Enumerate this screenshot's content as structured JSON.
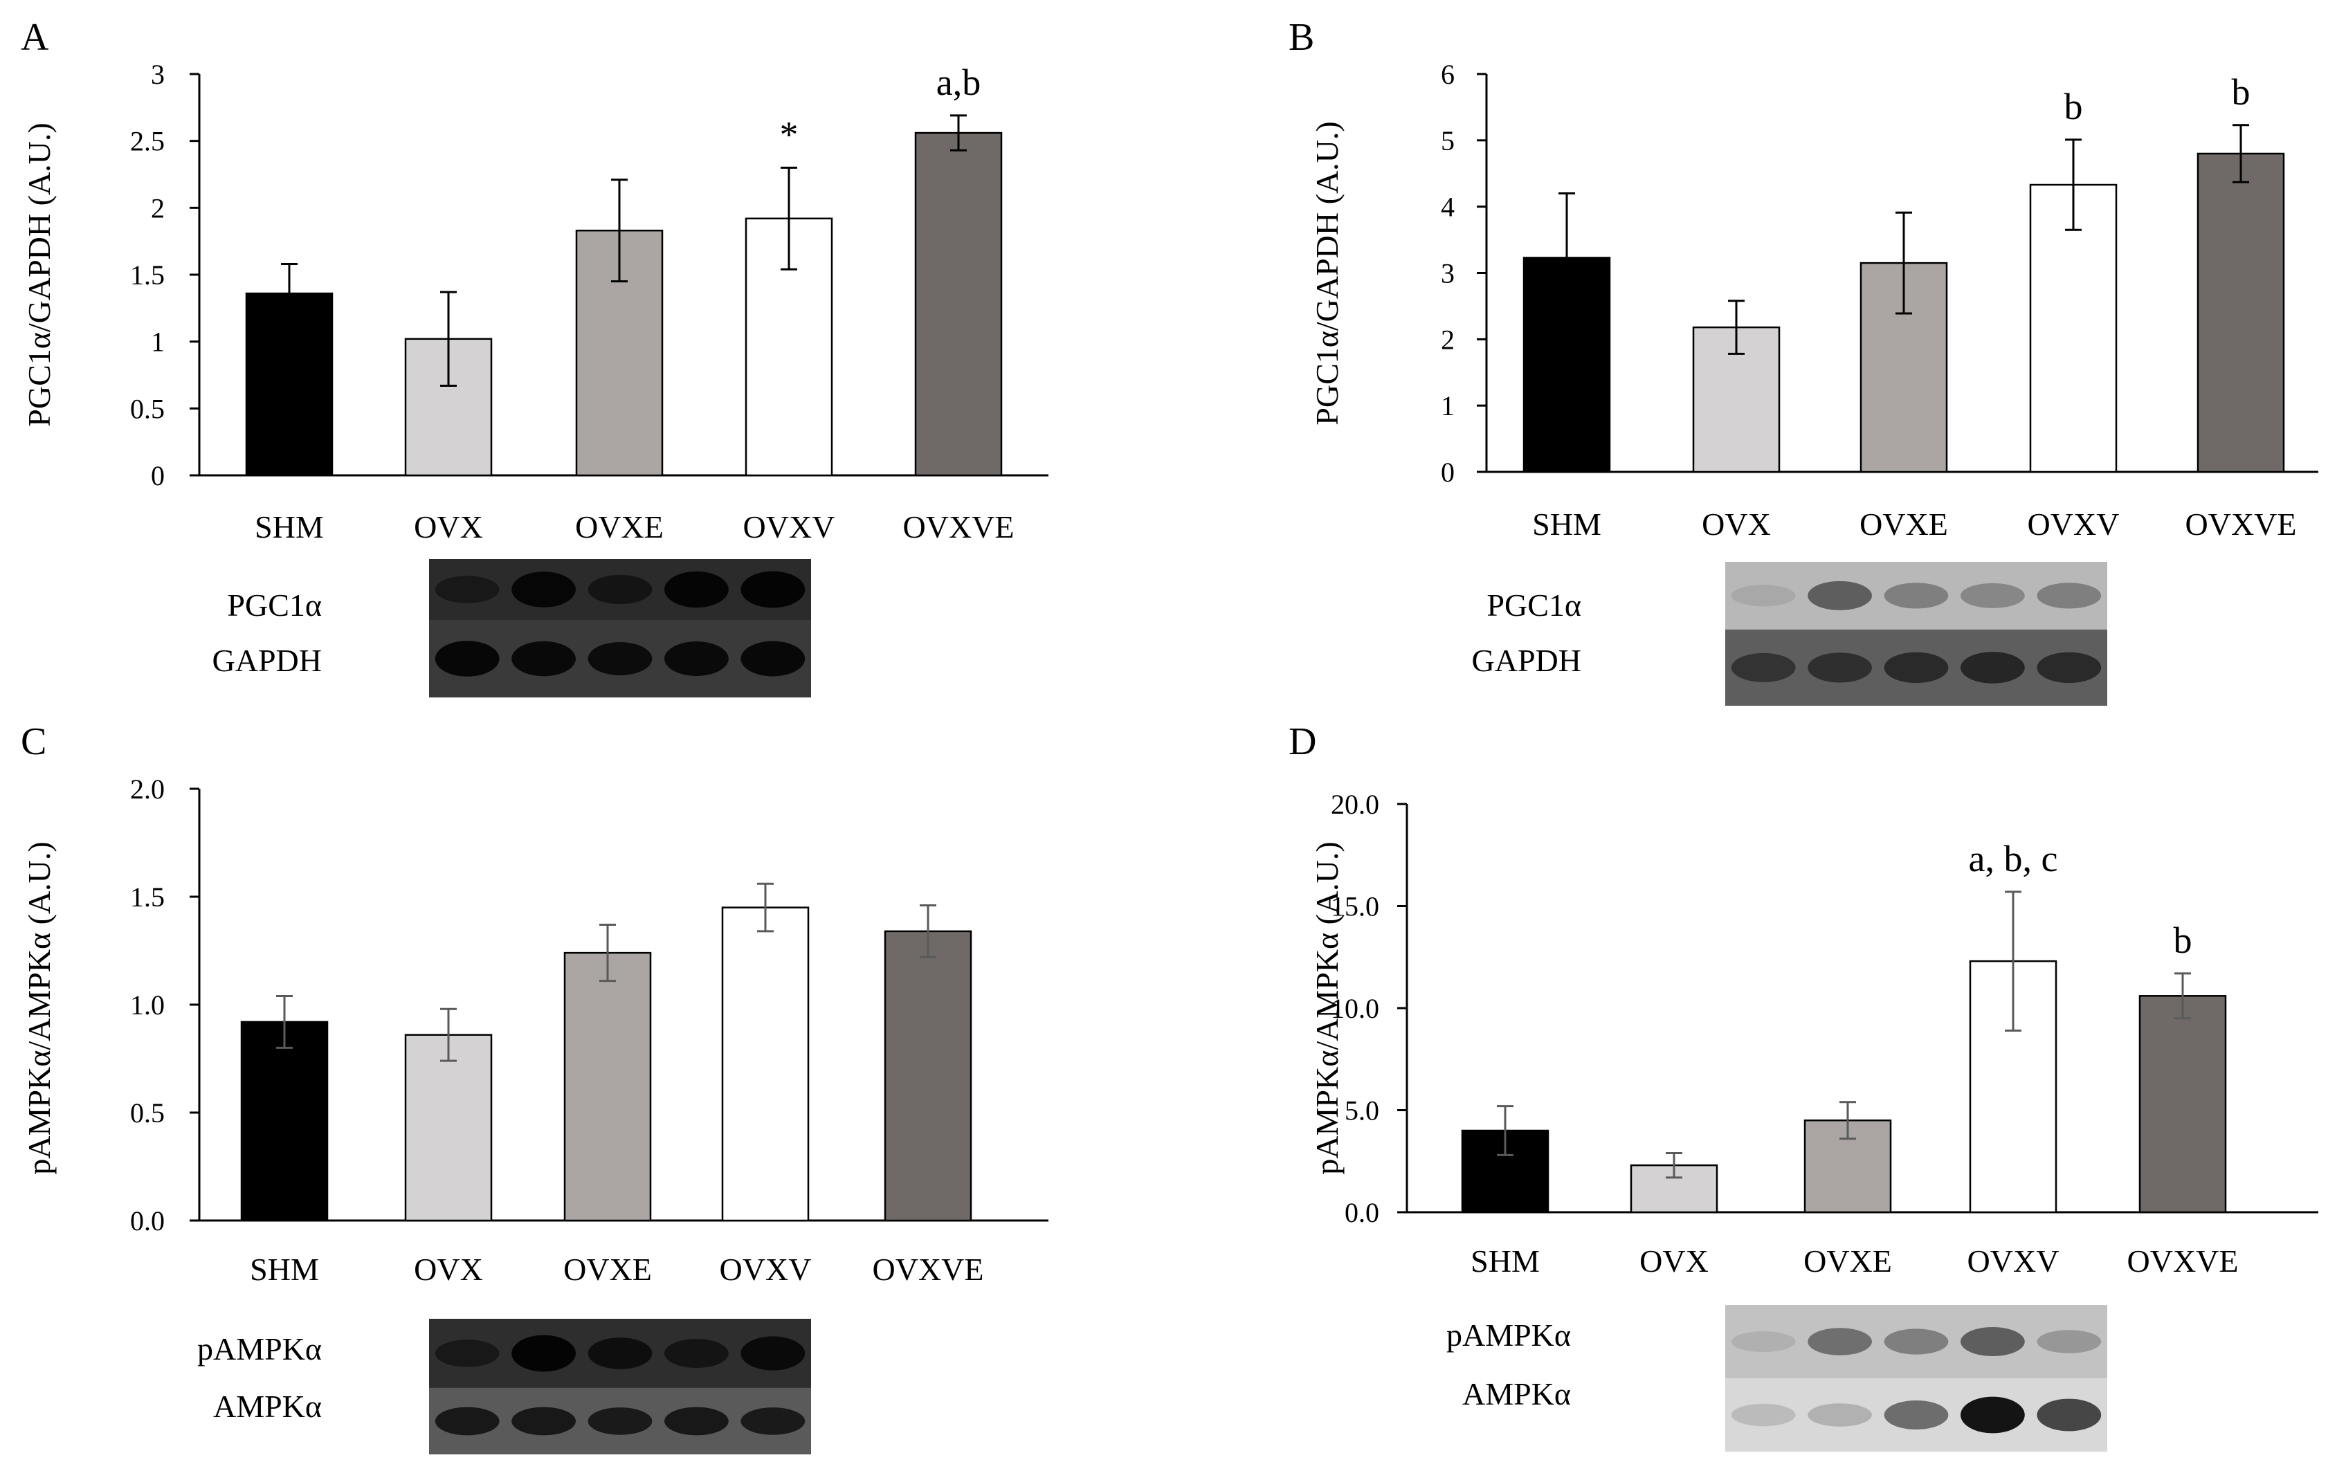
{
  "figure": {
    "colors": {
      "SHM": "#000000",
      "OVX": "#d4d2d3",
      "OVXE": "#aba6a4",
      "OVXV": "#ffffff",
      "OVXVE": "#6f6a67",
      "error_bar": "#000000",
      "error_bar_grey": "#5a5a5a"
    }
  },
  "chart_data": [
    {
      "panel": "A",
      "type": "bar",
      "ylabel": "PGC1α/GAPDH (A.U.)",
      "categories": [
        "SHM",
        "OVX",
        "OVXE",
        "OVXV",
        "OVXVE"
      ],
      "values": [
        1.36,
        1.02,
        1.83,
        1.92,
        2.56
      ],
      "errors": [
        0.22,
        0.35,
        0.38,
        0.38,
        0.13
      ],
      "annotations": [
        "",
        "",
        "",
        "*",
        "a,b"
      ],
      "ylim": [
        0,
        3
      ],
      "yticks": [
        0,
        0.5,
        1,
        1.5,
        2,
        2.5,
        3
      ],
      "yticklabels": [
        "0",
        "0.5",
        "1",
        "1.5",
        "2",
        "2.5",
        "3"
      ],
      "blot_labels": [
        "PGC1α",
        "GAPDH"
      ]
    },
    {
      "panel": "B",
      "type": "bar",
      "ylabel": "PGC1α/GAPDH (A.U.)",
      "categories": [
        "SHM",
        "OVX",
        "OVXE",
        "OVXV",
        "OVXVE"
      ],
      "values": [
        3.23,
        2.18,
        3.15,
        4.33,
        4.8
      ],
      "errors": [
        0.97,
        0.4,
        0.76,
        0.68,
        0.43
      ],
      "annotations": [
        "",
        "",
        "",
        "b",
        "b"
      ],
      "ylim": [
        0,
        6
      ],
      "yticks": [
        0,
        1,
        2,
        3,
        4,
        5,
        6
      ],
      "yticklabels": [
        "0",
        "1",
        "2",
        "3",
        "4",
        "5",
        "6"
      ],
      "blot_labels": [
        "PGC1α",
        "GAPDH"
      ]
    },
    {
      "panel": "C",
      "type": "bar",
      "ylabel": "pAMPKα/AMPKα (A.U.)",
      "categories": [
        "SHM",
        "OVX",
        "OVXE",
        "OVXV",
        "OVXVE"
      ],
      "values": [
        0.92,
        0.86,
        1.24,
        1.45,
        1.34
      ],
      "errors": [
        0.12,
        0.12,
        0.13,
        0.11,
        0.12
      ],
      "annotations": [
        "",
        "",
        "",
        "",
        ""
      ],
      "ylim": [
        0,
        2
      ],
      "yticks": [
        0,
        0.5,
        1,
        1.5,
        2
      ],
      "yticklabels": [
        "0.0",
        "0.5",
        "1.0",
        "1.5",
        "2.0"
      ],
      "blot_labels": [
        "pAMPKα",
        "AMPKα"
      ]
    },
    {
      "panel": "D",
      "type": "bar",
      "ylabel": "pAMPKα/AMPKα (A.U.)",
      "categories": [
        "SHM",
        "OVX",
        "OVXE",
        "OVXV",
        "OVXVE"
      ],
      "values": [
        4.0,
        2.3,
        4.5,
        12.3,
        10.6
      ],
      "errors": [
        1.2,
        0.6,
        0.9,
        3.4,
        1.1
      ],
      "annotations": [
        "",
        "",
        "",
        "a, b, c",
        "b"
      ],
      "ylim": [
        0,
        20
      ],
      "yticks": [
        0,
        5,
        10,
        15,
        20
      ],
      "yticklabels": [
        "0.0",
        "5.0",
        "10.0",
        "15.0",
        "20.0"
      ],
      "blot_labels": [
        "pAMPKα",
        "AMPKα"
      ]
    }
  ]
}
